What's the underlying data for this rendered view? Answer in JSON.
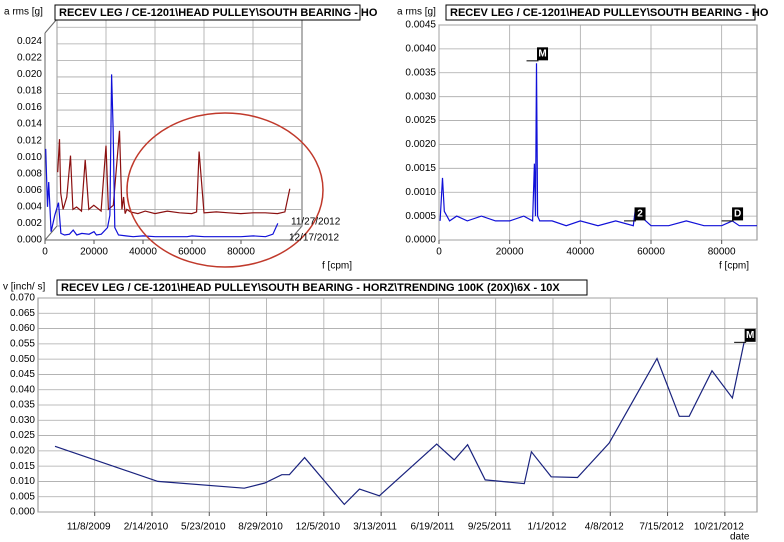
{
  "chart_data": [
    {
      "type": "waterfall",
      "title": "RECEV LEG / CE-1201\\HEAD PULLEY\\SOUTH BEARING - HO",
      "y_label": "a rms [g]",
      "x_label": "f [cpm]",
      "x": [
        300,
        1000,
        1500,
        2500,
        4000,
        5500,
        6500,
        8000,
        10000,
        11500,
        13000,
        15000,
        18000,
        20000,
        21000,
        23000,
        25500,
        26500,
        27200,
        27800,
        28500,
        30000,
        33000,
        36000,
        40000,
        45000,
        50000,
        55000,
        57000,
        58000,
        60000,
        65000,
        70000,
        75000,
        80000,
        85000,
        90000,
        93000,
        95000
      ],
      "series": [
        {
          "name": "11/27/2012",
          "color": "#8b1010",
          "values": [
            0.0065,
            0.0105,
            0.004,
            0.002,
            0.0035,
            0.0085,
            0.002,
            0.0023,
            0.0018,
            0.008,
            0.002,
            0.0025,
            0.0018,
            0.0097,
            0.002,
            0.0025,
            0.0115,
            0.002,
            0.0035,
            0.0015,
            0.002,
            0.0017,
            0.0015,
            0.0018,
            0.0015,
            0.0018,
            0.0016,
            0.0015,
            0.0017,
            0.009,
            0.0016,
            0.0017,
            0.0016,
            0.0015,
            0.0016,
            0.0016,
            0.0015,
            0.0017,
            0.0045
          ]
        },
        {
          "name": "12/17/2012",
          "color": "#1010d8",
          "values": [
            0.011,
            0.004,
            0.007,
            0.001,
            0.003,
            0.0045,
            0.0008,
            0.0006,
            0.0007,
            0.0012,
            0.0006,
            0.0008,
            0.0007,
            0.001,
            0.0006,
            0.0007,
            0.0015,
            0.003,
            0.02,
            0.0135,
            0.0015,
            0.0006,
            0.0005,
            0.0004,
            0.0005,
            0.0004,
            0.0004,
            0.0004,
            0.0004,
            0.0004,
            0.0005,
            0.0004,
            0.0004,
            0.0004,
            0.0004,
            0.0005,
            0.0004,
            0.0007,
            0.002
          ]
        }
      ],
      "xlim": [
        0,
        100000
      ],
      "ylim": [
        0,
        0.025
      ],
      "xticks": [
        0,
        20000,
        40000,
        60000,
        80000
      ],
      "yticks": [
        {
          "value": 0,
          "label": "0.000"
        },
        {
          "value": 0.002,
          "label": "0.002"
        },
        {
          "value": 0.004,
          "label": "0.004"
        },
        {
          "value": 0.006,
          "label": "0.006"
        },
        {
          "value": 0.008,
          "label": "0.008"
        },
        {
          "value": 0.01,
          "label": "0.010"
        },
        {
          "value": 0.012,
          "label": "0.012"
        },
        {
          "value": 0.014,
          "label": "0.014"
        },
        {
          "value": 0.016,
          "label": "0.016"
        },
        {
          "value": 0.018,
          "label": "0.018"
        },
        {
          "value": 0.02,
          "label": "0.020"
        },
        {
          "value": 0.022,
          "label": "0.022"
        },
        {
          "value": 0.024,
          "label": "0.024"
        }
      ],
      "grid": true
    },
    {
      "type": "line",
      "title": "RECEV LEG / CE-1201\\HEAD PULLEY\\SOUTH BEARING - HO",
      "y_label": "a rms [g]",
      "x_label": "f [cpm]",
      "x": [
        300,
        1000,
        1500,
        3000,
        5000,
        8000,
        12000,
        16000,
        20000,
        24000,
        26500,
        27000,
        27300,
        27600,
        27900,
        28500,
        32000,
        36000,
        40000,
        45000,
        50000,
        55000,
        55500,
        60000,
        65000,
        70000,
        75000,
        80000,
        83000,
        85000,
        88000,
        90000
      ],
      "values": [
        0.0004,
        0.0013,
        0.0006,
        0.0004,
        0.0005,
        0.0004,
        0.0005,
        0.0004,
        0.0004,
        0.0005,
        0.0004,
        0.0016,
        0.0005,
        0.0037,
        0.0005,
        0.0004,
        0.0004,
        0.0003,
        0.0004,
        0.0003,
        0.0004,
        0.0003,
        0.0006,
        0.0003,
        0.0003,
        0.0004,
        0.0003,
        0.0003,
        0.0004,
        0.0003,
        0.0003,
        0.0003
      ],
      "color": "#1010d8",
      "markers": [
        {
          "label": "M",
          "x": 27600,
          "y": 0.00375
        },
        {
          "label": "2",
          "x": 55200,
          "y": 0.0004
        },
        {
          "label": "D",
          "x": 82800,
          "y": 0.0004
        }
      ],
      "xlim": [
        0,
        90000
      ],
      "ylim": [
        0,
        0.0045
      ],
      "xticks": [
        0,
        20000,
        40000,
        60000,
        80000
      ],
      "yticks": [
        {
          "value": 0,
          "label": "0.0000"
        },
        {
          "value": 0.0005,
          "label": "0.0005"
        },
        {
          "value": 0.001,
          "label": "0.0010"
        },
        {
          "value": 0.0015,
          "label": "0.0015"
        },
        {
          "value": 0.002,
          "label": "0.0020"
        },
        {
          "value": 0.0025,
          "label": "0.0025"
        },
        {
          "value": 0.003,
          "label": "0.0030"
        },
        {
          "value": 0.0035,
          "label": "0.0035"
        },
        {
          "value": 0.004,
          "label": "0.0040"
        },
        {
          "value": 0.0045,
          "label": "0.0045"
        }
      ],
      "grid": true
    },
    {
      "type": "line",
      "title": "RECEV LEG / CE-1201\\HEAD PULLEY\\SOUTH BEARING - HORZ\\TRENDING 100K (20X)\\6X - 10X",
      "y_label": "v [inch/ s]",
      "x_label": "date",
      "x": [
        "2009-09-01",
        "2010-02-24",
        "2010-07-22",
        "2010-08-26",
        "2010-09-24",
        "2010-10-07",
        "2010-11-02",
        "2011-01-09",
        "2011-02-04",
        "2011-03-10",
        "2011-06-16",
        "2011-07-16",
        "2011-08-08",
        "2011-09-07",
        "2011-11-13",
        "2011-11-25",
        "2011-12-29",
        "2012-02-12",
        "2012-04-06",
        "2012-06-27",
        "2012-08-04",
        "2012-08-21",
        "2012-09-29",
        "2012-11-03",
        "2012-11-23"
      ],
      "values": [
        0.0215,
        0.01,
        0.0078,
        0.0095,
        0.0122,
        0.0122,
        0.0178,
        0.0025,
        0.0075,
        0.0053,
        0.0222,
        0.017,
        0.022,
        0.0105,
        0.0093,
        0.0197,
        0.0115,
        0.0113,
        0.0225,
        0.0502,
        0.0313,
        0.0313,
        0.0462,
        0.0373,
        0.0555
      ],
      "color": "#1a237e",
      "markers": [
        {
          "label": "M",
          "x": "2012-11-23",
          "y": 0.0555
        }
      ],
      "xlim": [
        "2009-08-03",
        "2012-12-15"
      ],
      "ylim": [
        0,
        0.07
      ],
      "xticks": [
        {
          "value": "2009-11-08",
          "label": "11/8/2009"
        },
        {
          "value": "2010-02-14",
          "label": "2/14/2010"
        },
        {
          "value": "2010-05-23",
          "label": "5/23/2010"
        },
        {
          "value": "2010-08-29",
          "label": "8/29/2010"
        },
        {
          "value": "2010-12-05",
          "label": "12/5/2010"
        },
        {
          "value": "2011-03-13",
          "label": "3/13/2011"
        },
        {
          "value": "2011-06-19",
          "label": "6/19/2011"
        },
        {
          "value": "2011-09-25",
          "label": "9/25/2011"
        },
        {
          "value": "2012-01-01",
          "label": "1/1/2012"
        },
        {
          "value": "2012-04-08",
          "label": "4/8/2012"
        },
        {
          "value": "2012-07-15",
          "label": "7/15/2012"
        },
        {
          "value": "2012-10-21",
          "label": "10/21/2012"
        }
      ],
      "yticks": [
        {
          "value": 0,
          "label": "0.000"
        },
        {
          "value": 0.005,
          "label": "0.005"
        },
        {
          "value": 0.01,
          "label": "0.010"
        },
        {
          "value": 0.015,
          "label": "0.015"
        },
        {
          "value": 0.02,
          "label": "0.020"
        },
        {
          "value": 0.025,
          "label": "0.025"
        },
        {
          "value": 0.03,
          "label": "0.030"
        },
        {
          "value": 0.035,
          "label": "0.035"
        },
        {
          "value": 0.04,
          "label": "0.040"
        },
        {
          "value": 0.045,
          "label": "0.045"
        },
        {
          "value": 0.05,
          "label": "0.050"
        },
        {
          "value": 0.055,
          "label": "0.055"
        },
        {
          "value": 0.06,
          "label": "0.060"
        },
        {
          "value": 0.065,
          "label": "0.065"
        },
        {
          "value": 0.07,
          "label": "0.070"
        }
      ],
      "grid": true
    }
  ]
}
